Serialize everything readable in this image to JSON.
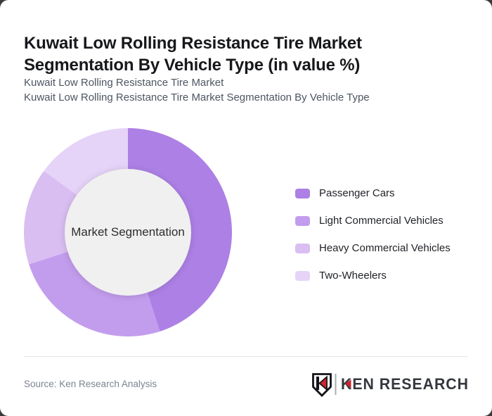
{
  "page": {
    "outer_bg": "#3a3a3a",
    "card_bg": "#ffffff"
  },
  "header": {
    "title": "Kuwait Low Rolling Resistance Tire Market Segmentation By Vehicle Type (in value %)",
    "subtitle_lines": [
      "Kuwait Low Rolling Resistance Tire Market",
      "Kuwait Low Rolling Resistance Tire Market Segmentation By Vehicle Type"
    ]
  },
  "chart_data": {
    "type": "pie",
    "subtype": "donut",
    "title": "Kuwait Low Rolling Resistance Tire Market Segmentation By Vehicle Type (in value %)",
    "center_label": "Market Segmentation",
    "unit": "value %",
    "start_angle_deg": 0,
    "direction": "clockwise",
    "legend_position": "right",
    "categories": [
      "Passenger Cars",
      "Light Commercial Vehicles",
      "Heavy Commercial Vehicles",
      "Two-Wheelers"
    ],
    "values": [
      45,
      25,
      15,
      15
    ],
    "colors": [
      "#ad80e5",
      "#c39ded",
      "#d9bef2",
      "#e6d3f8"
    ],
    "hole_color": "#f0f0f0"
  },
  "footer": {
    "source": "Source: Ken Research Analysis",
    "logo": {
      "text": "KEN RESEARCH",
      "accent_color": "#cf2430",
      "text_color": "#34383e",
      "outline_color": "#121317",
      "separator_color": "#a7adb4"
    }
  }
}
